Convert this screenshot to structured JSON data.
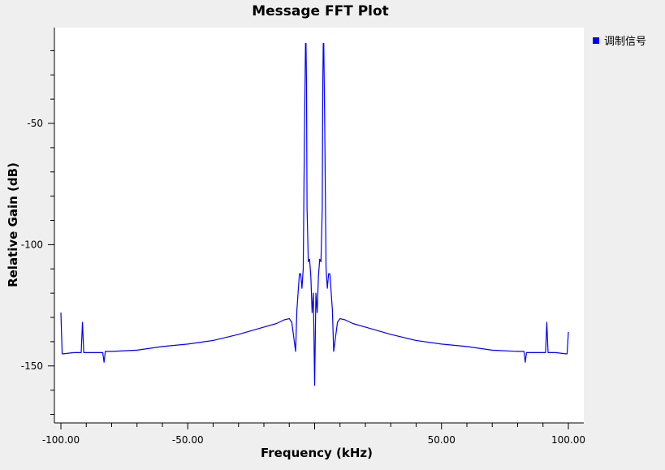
{
  "chart_data": {
    "type": "line",
    "title": "Message FFT Plot",
    "xlabel": "Frequency (kHz)",
    "ylabel": "Relative Gain (dB)",
    "xlim": [
      -100,
      100
    ],
    "ylim": [
      -173.5,
      -10.5
    ],
    "x_ticks": [
      -100,
      -50,
      0,
      50,
      100
    ],
    "x_tick_labels": [
      "-100.00",
      "-50.00",
      "",
      "50.00",
      "100.00"
    ],
    "y_ticks": [
      -50,
      -100,
      -150
    ],
    "y_tick_labels": [
      "-50",
      "-100",
      "-150"
    ],
    "grid": false,
    "legend_position": "top-right",
    "series": [
      {
        "name": "调制信号",
        "color": "#0000ff",
        "x": [
          -100,
          -99.5,
          -99,
          -95,
          -92,
          -91.5,
          -91,
          -90,
          -85,
          -83.5,
          -83,
          -82.5,
          -80,
          -70,
          -60,
          -50,
          -40,
          -30,
          -20,
          -15,
          -12,
          -10,
          -9,
          -8,
          -7.5,
          -7,
          -6,
          -5.5,
          -5,
          -4.5,
          -4,
          -3.8,
          -3.6,
          -3.4,
          -3.2,
          -3,
          -2.5,
          -2,
          -1.5,
          -1,
          -0.5,
          0,
          0.5,
          1,
          1.5,
          2,
          2.5,
          3,
          3.2,
          3.4,
          3.6,
          3.8,
          4,
          4.5,
          5,
          5.5,
          6,
          7,
          7.5,
          8,
          9,
          10,
          12,
          15,
          20,
          30,
          40,
          50,
          60,
          70,
          80,
          82.5,
          83,
          83.5,
          85,
          90,
          91,
          91.5,
          92,
          95,
          99,
          99.5,
          100
        ],
        "y": [
          -128,
          -145,
          -145,
          -144.5,
          -144.5,
          -132,
          -144.5,
          -144.5,
          -144.5,
          -144.5,
          -148.5,
          -144,
          -144,
          -143.5,
          -142,
          -141,
          -139.5,
          -137,
          -134,
          -132.5,
          -131,
          -130.5,
          -132,
          -140,
          -144,
          -127,
          -112,
          -112,
          -118,
          -110,
          -53,
          -35,
          -17,
          -17,
          -35,
          -85,
          -107,
          -106,
          -113,
          -128,
          -120,
          -158,
          -120,
          -128,
          -113,
          -106,
          -107,
          -85,
          -35,
          -17,
          -17,
          -35,
          -53,
          -110,
          -118,
          -112,
          -112,
          -127,
          -144,
          -140,
          -132,
          -130.5,
          -131,
          -132.5,
          -134,
          -137,
          -139.5,
          -141,
          -142,
          -143.5,
          -144,
          -144,
          -148.5,
          -144.5,
          -144.5,
          -144.5,
          -144.5,
          -132,
          -144.5,
          -144.5,
          -145,
          -145,
          -136
        ]
      }
    ]
  }
}
